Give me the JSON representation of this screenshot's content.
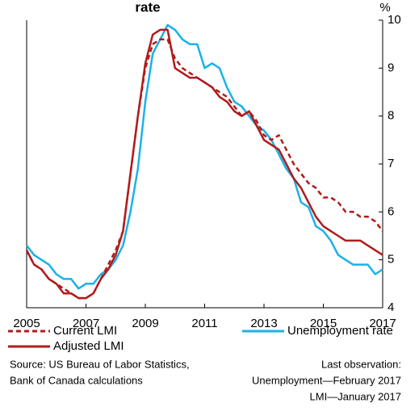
{
  "chart_data": {
    "type": "line",
    "title": "rate",
    "y_unit": "%",
    "x": [
      2005,
      2005.25,
      2005.5,
      2005.75,
      2006,
      2006.25,
      2006.5,
      2006.75,
      2007,
      2007.25,
      2007.5,
      2007.75,
      2008,
      2008.25,
      2008.5,
      2008.75,
      2009,
      2009.25,
      2009.5,
      2009.75,
      2010,
      2010.25,
      2010.5,
      2010.75,
      2011,
      2011.25,
      2011.5,
      2011.75,
      2012,
      2012.25,
      2012.5,
      2012.75,
      2013,
      2013.25,
      2013.5,
      2013.75,
      2014,
      2014.25,
      2014.5,
      2014.75,
      2015,
      2015.25,
      2015.5,
      2015.75,
      2016,
      2016.25,
      2016.5,
      2016.75,
      2017
    ],
    "series": [
      {
        "name": "Current LMI",
        "color": "#b01c1c",
        "dash": true,
        "values": [
          5.2,
          4.9,
          4.8,
          4.6,
          4.5,
          4.4,
          4.3,
          4.2,
          4.2,
          4.3,
          4.6,
          4.9,
          5.2,
          5.6,
          6.8,
          8.0,
          9.0,
          9.5,
          9.6,
          9.6,
          9.2,
          9.0,
          8.9,
          8.8,
          8.7,
          8.6,
          8.5,
          8.4,
          8.2,
          8.0,
          8.1,
          7.9,
          7.6,
          7.5,
          7.6,
          7.3,
          7.0,
          6.8,
          6.6,
          6.5,
          6.3,
          6.3,
          6.2,
          6.0,
          6.0,
          5.9,
          5.9,
          5.8,
          5.6
        ]
      },
      {
        "name": "Adjusted LMI",
        "color": "#b01c1c",
        "dash": false,
        "values": [
          5.2,
          4.9,
          4.8,
          4.6,
          4.5,
          4.3,
          4.3,
          4.2,
          4.2,
          4.3,
          4.6,
          4.8,
          5.1,
          5.6,
          6.8,
          8.0,
          9.1,
          9.7,
          9.8,
          9.8,
          9.0,
          8.9,
          8.8,
          8.8,
          8.7,
          8.6,
          8.4,
          8.3,
          8.1,
          8.0,
          8.1,
          7.8,
          7.5,
          7.4,
          7.3,
          7.0,
          6.7,
          6.5,
          6.2,
          5.9,
          5.7,
          5.6,
          5.5,
          5.4,
          5.4,
          5.4,
          5.3,
          5.2,
          5.1
        ]
      },
      {
        "name": "Unemployment rate",
        "color": "#1ab2e8",
        "dash": false,
        "values": [
          5.3,
          5.1,
          5.0,
          4.9,
          4.7,
          4.6,
          4.6,
          4.4,
          4.5,
          4.5,
          4.7,
          4.8,
          5.0,
          5.3,
          6.0,
          6.9,
          8.3,
          9.3,
          9.6,
          9.9,
          9.8,
          9.6,
          9.5,
          9.5,
          9.0,
          9.1,
          9.0,
          8.6,
          8.3,
          8.2,
          8.0,
          7.8,
          7.7,
          7.5,
          7.2,
          6.9,
          6.7,
          6.2,
          6.1,
          5.7,
          5.6,
          5.4,
          5.1,
          5.0,
          4.9,
          4.9,
          4.9,
          4.7,
          4.8
        ]
      }
    ],
    "xlim": [
      2005,
      2017
    ],
    "xticks": [
      2005,
      2007,
      2009,
      2011,
      2013,
      2015,
      2017
    ],
    "ylim": [
      4,
      10
    ],
    "yticks": [
      4,
      5,
      6,
      7,
      8,
      9,
      10
    ],
    "notes_left": [
      "Source: US Bureau of Labor Statistics,",
      "Bank of Canada calculations"
    ],
    "notes_right": [
      "Last observation:",
      "Unemployment—February 2017",
      "LMI—January 2017"
    ]
  }
}
